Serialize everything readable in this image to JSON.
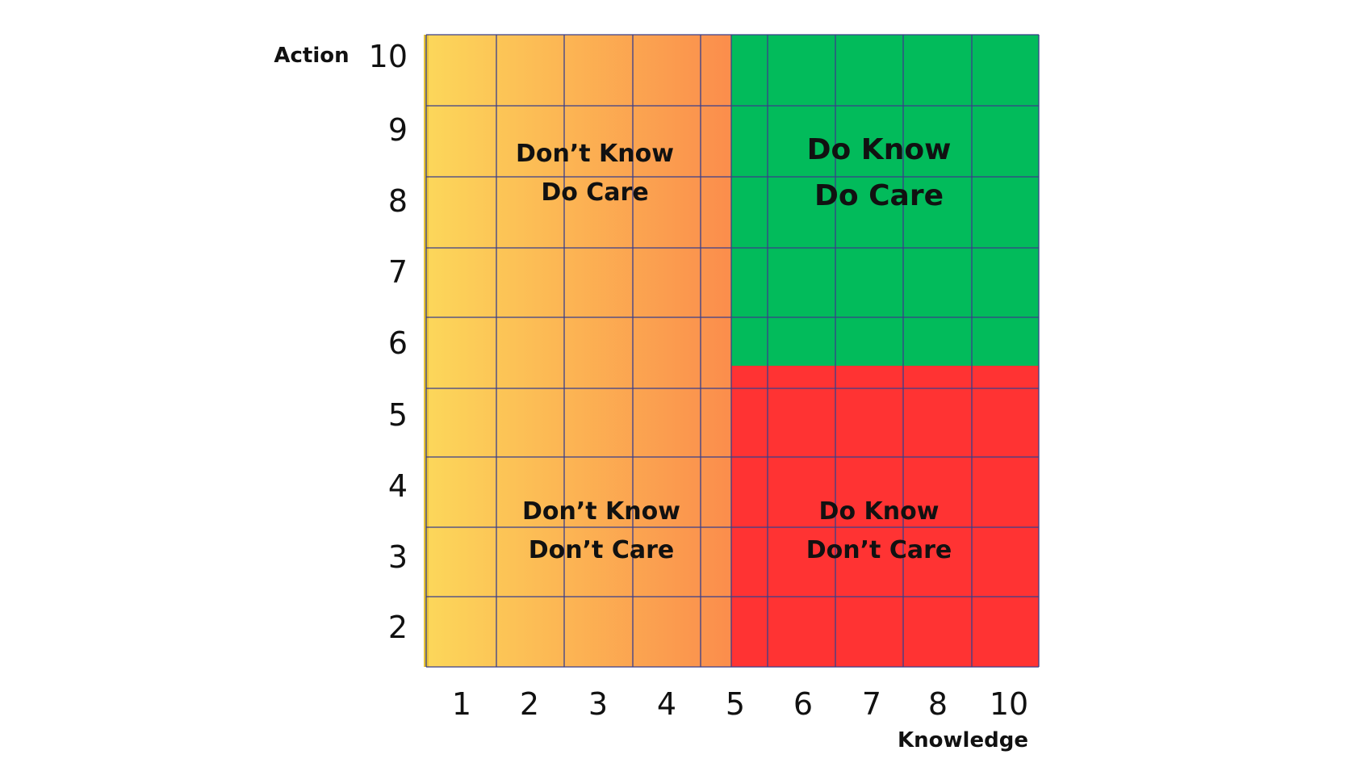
{
  "axes": {
    "y_title": "Action",
    "x_title": "Knowledge",
    "y_ticks": [
      "10",
      "9",
      "8",
      "7",
      "6",
      "5",
      "4",
      "3",
      "2"
    ],
    "x_ticks": [
      "1",
      "2",
      "3",
      "4",
      "5",
      "6",
      "7",
      "8",
      "10"
    ]
  },
  "quadrants": {
    "top_left": {
      "line1": "Don’t Know",
      "line2": "Do Care"
    },
    "top_right": {
      "line1": "Do Know",
      "line2": "Do Care"
    },
    "bottom_left": {
      "line1": "Don’t Know",
      "line2": "Don’t Care"
    },
    "bottom_right": {
      "line1": "Do Know",
      "line2": "Don’t Care"
    }
  },
  "colors": {
    "gradient_start": "#fcd75a",
    "gradient_end": "#fb8d4c",
    "green": "#02bb5b",
    "red": "#ff3333",
    "grid": "#3a3f8a"
  }
}
